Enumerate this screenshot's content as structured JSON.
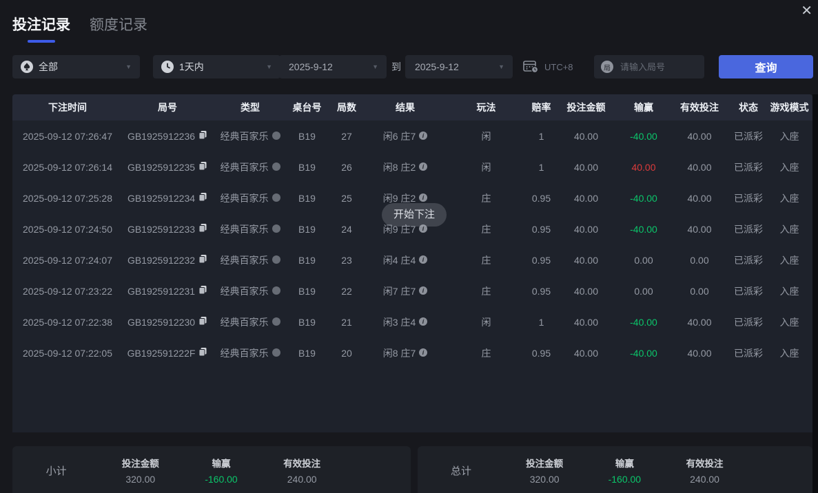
{
  "window": {
    "close_icon": "close"
  },
  "tabs": {
    "bet_records": "投注记录",
    "quota_records": "额度记录"
  },
  "filters": {
    "game_type_value": "全部",
    "time_range_value": "1天内",
    "date_from": "2025-9-12",
    "to_label": "到",
    "date_to": "2025-9-12",
    "timezone_label": "UTC+8",
    "round_placeholder": "请输入局号",
    "round_icon_char": "局",
    "search_label": "查询"
  },
  "table": {
    "headers": [
      "下注时间",
      "局号",
      "类型",
      "桌台号",
      "局数",
      "结果",
      "玩法",
      "赔率",
      "投注金额",
      "输赢",
      "有效投注",
      "状态",
      "游戏模式"
    ],
    "rows": [
      {
        "time": "2025-09-12 07:26:47",
        "round_id": "GB1925912236",
        "type": "经典百家乐",
        "table": "B19",
        "round": "27",
        "result": "闲6 庄7",
        "play": "闲",
        "odds": "1",
        "bet": "40.00",
        "win_loss": "-40.00",
        "tone": "green",
        "valid_bet": "40.00",
        "status": "已派彩",
        "mode": "入座"
      },
      {
        "time": "2025-09-12 07:26:14",
        "round_id": "GB1925912235",
        "type": "经典百家乐",
        "table": "B19",
        "round": "26",
        "result": "闲8 庄2",
        "play": "闲",
        "odds": "1",
        "bet": "40.00",
        "win_loss": "40.00",
        "tone": "red",
        "valid_bet": "40.00",
        "status": "已派彩",
        "mode": "入座"
      },
      {
        "time": "2025-09-12 07:25:28",
        "round_id": "GB1925912234",
        "type": "经典百家乐",
        "table": "B19",
        "round": "25",
        "result": "闲9 庄2",
        "play": "庄",
        "odds": "0.95",
        "bet": "40.00",
        "win_loss": "-40.00",
        "tone": "green",
        "valid_bet": "40.00",
        "status": "已派彩",
        "mode": "入座"
      },
      {
        "time": "2025-09-12 07:24:50",
        "round_id": "GB1925912233",
        "type": "经典百家乐",
        "table": "B19",
        "round": "24",
        "result": "闲9 庄7",
        "play": "庄",
        "odds": "0.95",
        "bet": "40.00",
        "win_loss": "-40.00",
        "tone": "green",
        "valid_bet": "40.00",
        "status": "已派彩",
        "mode": "入座"
      },
      {
        "time": "2025-09-12 07:24:07",
        "round_id": "GB1925912232",
        "type": "经典百家乐",
        "table": "B19",
        "round": "23",
        "result": "闲4 庄4",
        "play": "庄",
        "odds": "0.95",
        "bet": "40.00",
        "win_loss": "0.00",
        "tone": "normal",
        "valid_bet": "0.00",
        "status": "已派彩",
        "mode": "入座"
      },
      {
        "time": "2025-09-12 07:23:22",
        "round_id": "GB1925912231",
        "type": "经典百家乐",
        "table": "B19",
        "round": "22",
        "result": "闲7 庄7",
        "play": "庄",
        "odds": "0.95",
        "bet": "40.00",
        "win_loss": "0.00",
        "tone": "normal",
        "valid_bet": "0.00",
        "status": "已派彩",
        "mode": "入座"
      },
      {
        "time": "2025-09-12 07:22:38",
        "round_id": "GB1925912230",
        "type": "经典百家乐",
        "table": "B19",
        "round": "21",
        "result": "闲3 庄4",
        "play": "闲",
        "odds": "1",
        "bet": "40.00",
        "win_loss": "-40.00",
        "tone": "green",
        "valid_bet": "40.00",
        "status": "已派彩",
        "mode": "入座"
      },
      {
        "time": "2025-09-12 07:22:05",
        "round_id": "GB192591222F",
        "type": "经典百家乐",
        "table": "B19",
        "round": "20",
        "result": "闲8 庄7",
        "play": "庄",
        "odds": "0.95",
        "bet": "40.00",
        "win_loss": "-40.00",
        "tone": "green",
        "valid_bet": "40.00",
        "status": "已派彩",
        "mode": "入座"
      }
    ]
  },
  "toast_label": "开始下注",
  "summary": {
    "subtotal": {
      "title": "小计",
      "columns": [
        {
          "label": "投注金额",
          "value": "320.00",
          "tone": "normal"
        },
        {
          "label": "输赢",
          "value": "-160.00",
          "tone": "green"
        },
        {
          "label": "有效投注",
          "value": "240.00",
          "tone": "normal"
        }
      ]
    },
    "total": {
      "title": "总计",
      "columns": [
        {
          "label": "投注金额",
          "value": "320.00",
          "tone": "normal"
        },
        {
          "label": "输赢",
          "value": "-160.00",
          "tone": "green"
        },
        {
          "label": "有效投注",
          "value": "240.00",
          "tone": "normal"
        }
      ]
    }
  },
  "colors": {
    "accent_blue": "#4a67de",
    "tab_underline": "#3d5be8",
    "win_green": "#0bc56a",
    "loss_red": "#dd3b3b",
    "page_bg": "#17181d",
    "table_bg": "#1e222b",
    "header_bg": "#262a37"
  }
}
